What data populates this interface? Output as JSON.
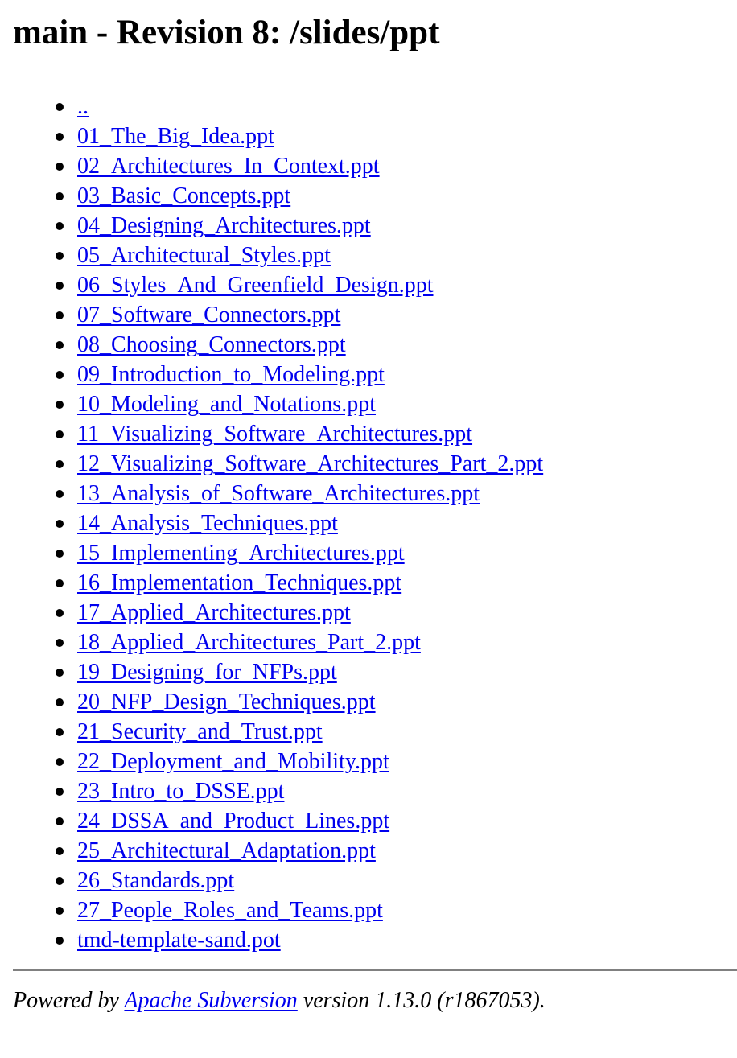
{
  "header": {
    "title": "main - Revision 8: /slides/ppt"
  },
  "listing": {
    "items": [
      "..",
      "01_The_Big_Idea.ppt",
      "02_Architectures_In_Context.ppt",
      "03_Basic_Concepts.ppt",
      "04_Designing_Architectures.ppt",
      "05_Architectural_Styles.ppt",
      "06_Styles_And_Greenfield_Design.ppt",
      "07_Software_Connectors.ppt",
      "08_Choosing_Connectors.ppt",
      "09_Introduction_to_Modeling.ppt",
      "10_Modeling_and_Notations.ppt",
      "11_Visualizing_Software_Architectures.ppt",
      "12_Visualizing_Software_Architectures_Part_2.ppt",
      "13_Analysis_of_Software_Architectures.ppt",
      "14_Analysis_Techniques.ppt",
      "15_Implementing_Architectures.ppt",
      "16_Implementation_Techniques.ppt",
      "17_Applied_Architectures.ppt",
      "18_Applied_Architectures_Part_2.ppt",
      "19_Designing_for_NFPs.ppt",
      "20_NFP_Design_Techniques.ppt",
      "21_Security_and_Trust.ppt",
      "22_Deployment_and_Mobility.ppt",
      "23_Intro_to_DSSE.ppt",
      "24_DSSA_and_Product_Lines.ppt",
      "25_Architectural_Adaptation.ppt",
      "26_Standards.ppt",
      "27_People_Roles_and_Teams.ppt",
      "tmd-template-sand.pot"
    ]
  },
  "footer": {
    "prefix": "Powered by ",
    "link_label": "Apache Subversion",
    "suffix": " version 1.13.0 (r1867053)."
  },
  "colors": {
    "link": "#0000ee",
    "divider": "#808080"
  }
}
